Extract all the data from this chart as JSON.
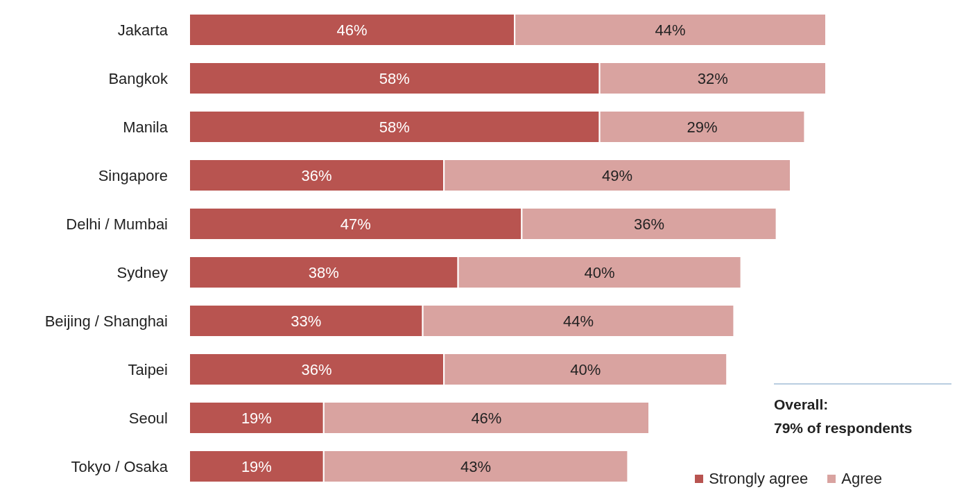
{
  "chart_data": {
    "type": "bar",
    "orientation": "horizontal",
    "stacked": true,
    "categories": [
      "Jakarta",
      "Bangkok",
      "Manila",
      "Singapore",
      "Delhi / Mumbai",
      "Sydney",
      "Beijing / Shanghai",
      "Taipei",
      "Seoul",
      "Tokyo / Osaka"
    ],
    "series": [
      {
        "name": "Strongly agree",
        "color": "#b85450",
        "values": [
          46,
          58,
          58,
          36,
          47,
          38,
          33,
          36,
          19,
          19
        ],
        "value_labels": [
          "46%",
          "58%",
          "58%",
          "36%",
          "47%",
          "38%",
          "33%",
          "36%",
          "19%",
          "19%"
        ]
      },
      {
        "name": "Agree",
        "color": "#d9a3a0",
        "values": [
          44,
          32,
          29,
          49,
          36,
          40,
          44,
          40,
          46,
          43
        ],
        "value_labels": [
          "44%",
          "32%",
          "29%",
          "49%",
          "36%",
          "40%",
          "44%",
          "40%",
          "46%",
          "43%"
        ]
      }
    ],
    "legend": "bottom right",
    "annotations": [
      "Overall:\n79% of respondents"
    ]
  }
}
